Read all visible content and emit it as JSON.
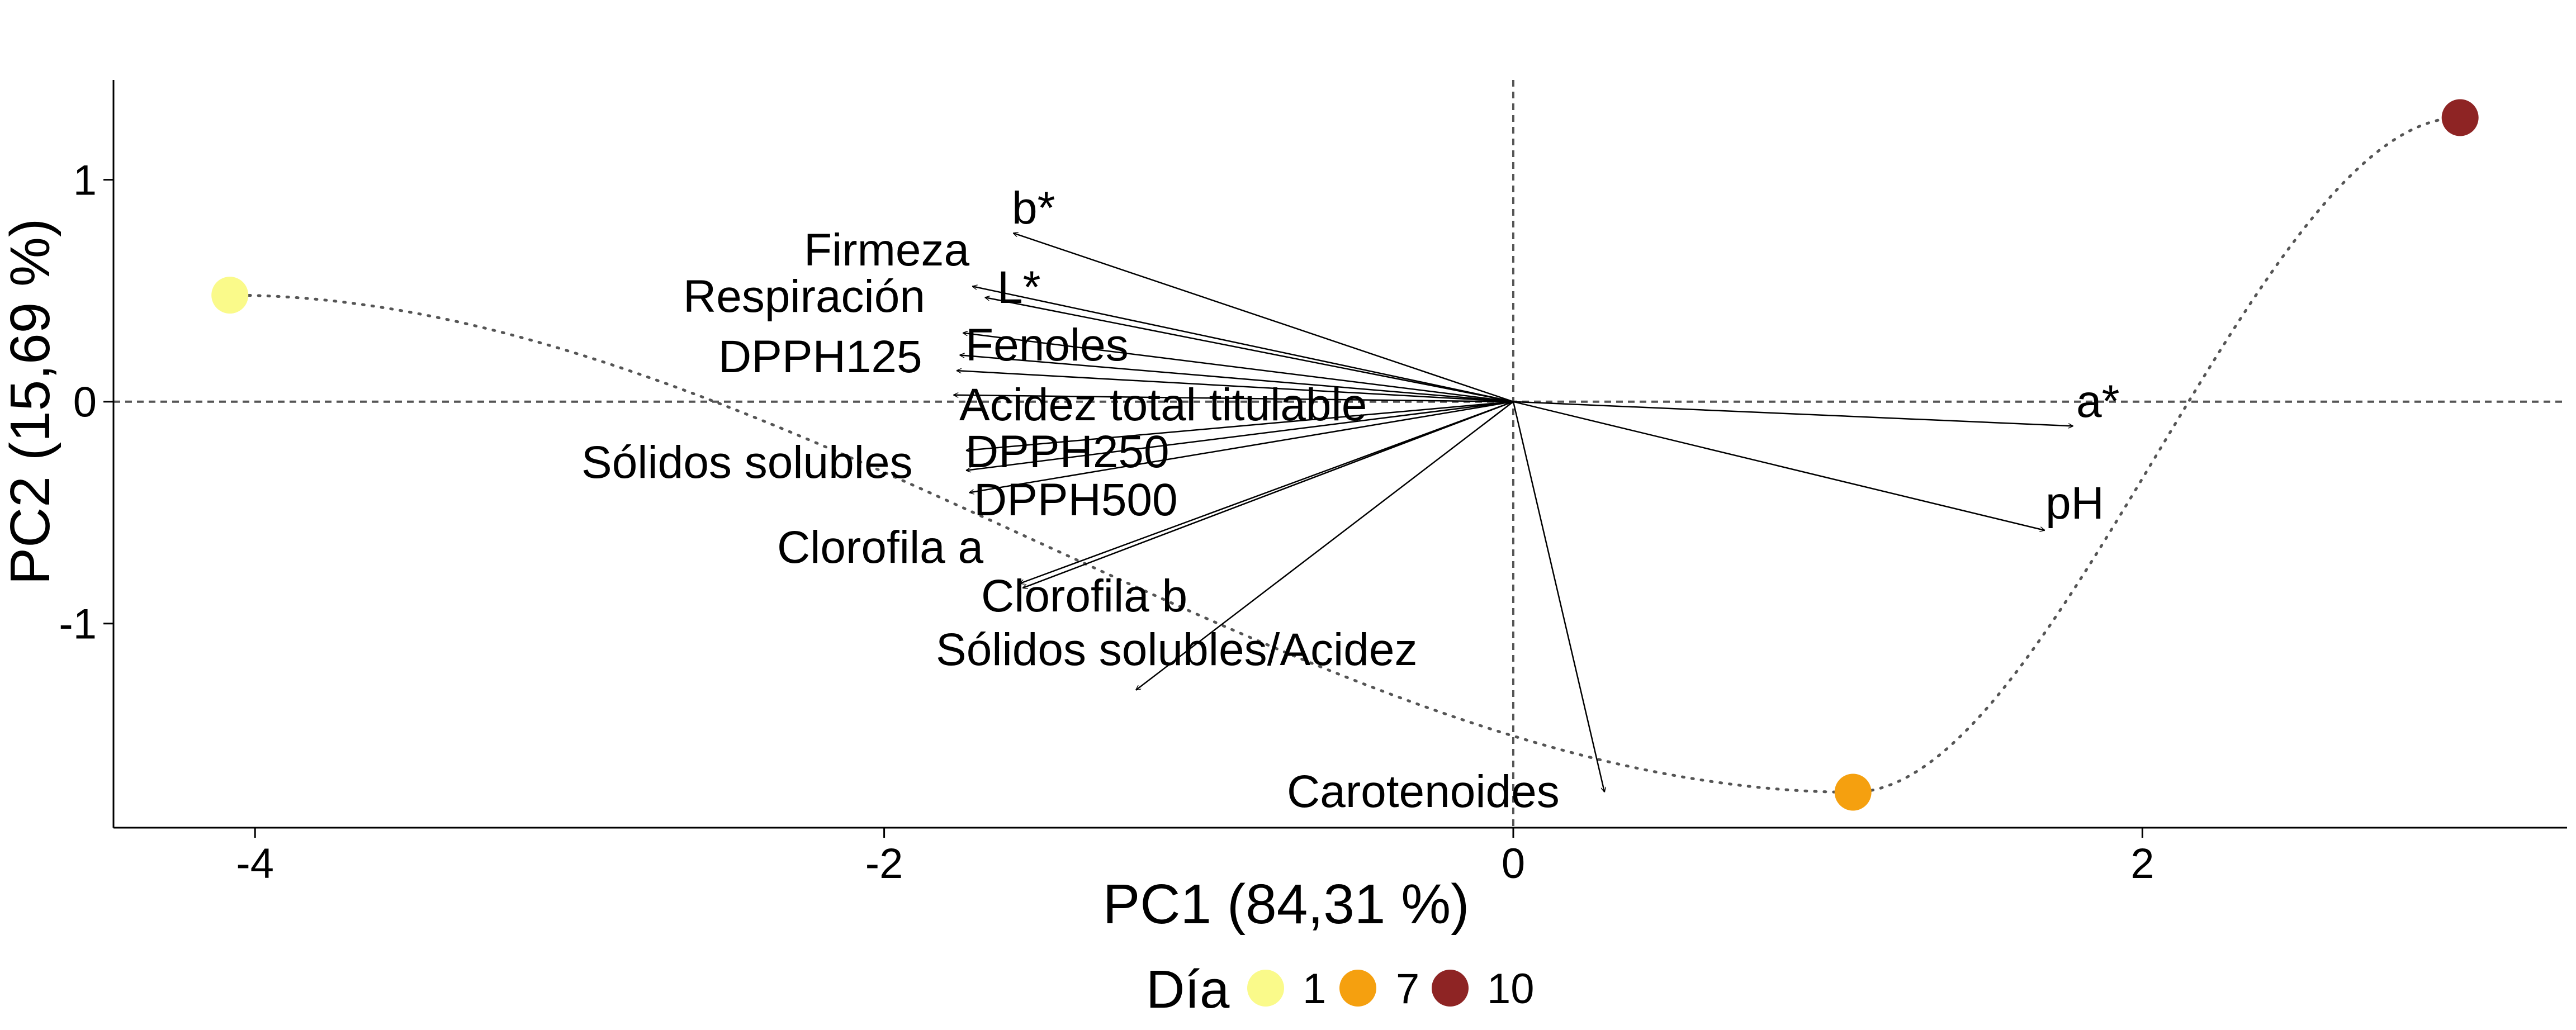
{
  "chart_data": {
    "type": "scatter",
    "subtype": "pca-biplot",
    "xlabel": "PC1 (84,31 %)",
    "ylabel": "PC2 (15,69 %)",
    "xlim": [
      -4.45,
      3.35
    ],
    "ylim": [
      -1.92,
      1.45
    ],
    "x_ticks": [
      -4,
      -2,
      0,
      2
    ],
    "x_tick_labels": [
      "-4",
      "-2",
      "0",
      "2"
    ],
    "y_ticks": [
      -1,
      0,
      1
    ],
    "y_tick_labels": [
      "-1",
      "0",
      "1"
    ],
    "grid": false,
    "reference_lines": [
      {
        "axis": "x",
        "value": 0,
        "style": "dashed"
      },
      {
        "axis": "y",
        "value": 0,
        "style": "dashed"
      }
    ],
    "legend": {
      "title": "Día",
      "placement": "bottom",
      "entries": [
        {
          "label": "1",
          "color": "#FAFA8A"
        },
        {
          "label": "7",
          "color": "#F5A00F"
        },
        {
          "label": "10",
          "color": "#8E2424"
        }
      ]
    },
    "points": [
      {
        "label": "1",
        "x": -4.08,
        "y": 0.48,
        "color": "#FAFA8A"
      },
      {
        "label": "7",
        "x": 1.08,
        "y": -1.76,
        "color": "#F5A00F"
      },
      {
        "label": "10",
        "x": 3.01,
        "y": 1.28,
        "color": "#8E2424"
      }
    ],
    "trajectory": {
      "style": "dotted",
      "through": [
        "1",
        "7",
        "10"
      ]
    },
    "loadings": [
      {
        "name": "b*",
        "x": -1.59,
        "y": 0.76
      },
      {
        "name": "Firmeza",
        "x": -1.72,
        "y": 0.52
      },
      {
        "name": "L*",
        "x": -1.68,
        "y": 0.47
      },
      {
        "name": "Respiración",
        "x": -1.75,
        "y": 0.31
      },
      {
        "name": "Fenoles",
        "x": -1.76,
        "y": 0.21
      },
      {
        "name": "DPPH125",
        "x": -1.77,
        "y": 0.14
      },
      {
        "name": "Acidez total titulable",
        "x": -1.78,
        "y": 0.03
      },
      {
        "name": "DPPH250",
        "x": -1.74,
        "y": -0.22
      },
      {
        "name": "Sólidos solubles",
        "x": -1.74,
        "y": -0.31
      },
      {
        "name": "DPPH500",
        "x": -1.73,
        "y": -0.41
      },
      {
        "name": "Clorofila a",
        "x": -1.57,
        "y": -0.82
      },
      {
        "name": "Clorofila b",
        "x": -1.56,
        "y": -0.84
      },
      {
        "name": "Sólidos solubles/Acidez",
        "x": -1.2,
        "y": -1.3
      },
      {
        "name": "Carotenoides",
        "x": 0.29,
        "y": -1.76
      },
      {
        "name": "a*",
        "x": 1.78,
        "y": -0.11
      },
      {
        "name": "pH",
        "x": 1.69,
        "y": -0.58
      }
    ]
  }
}
